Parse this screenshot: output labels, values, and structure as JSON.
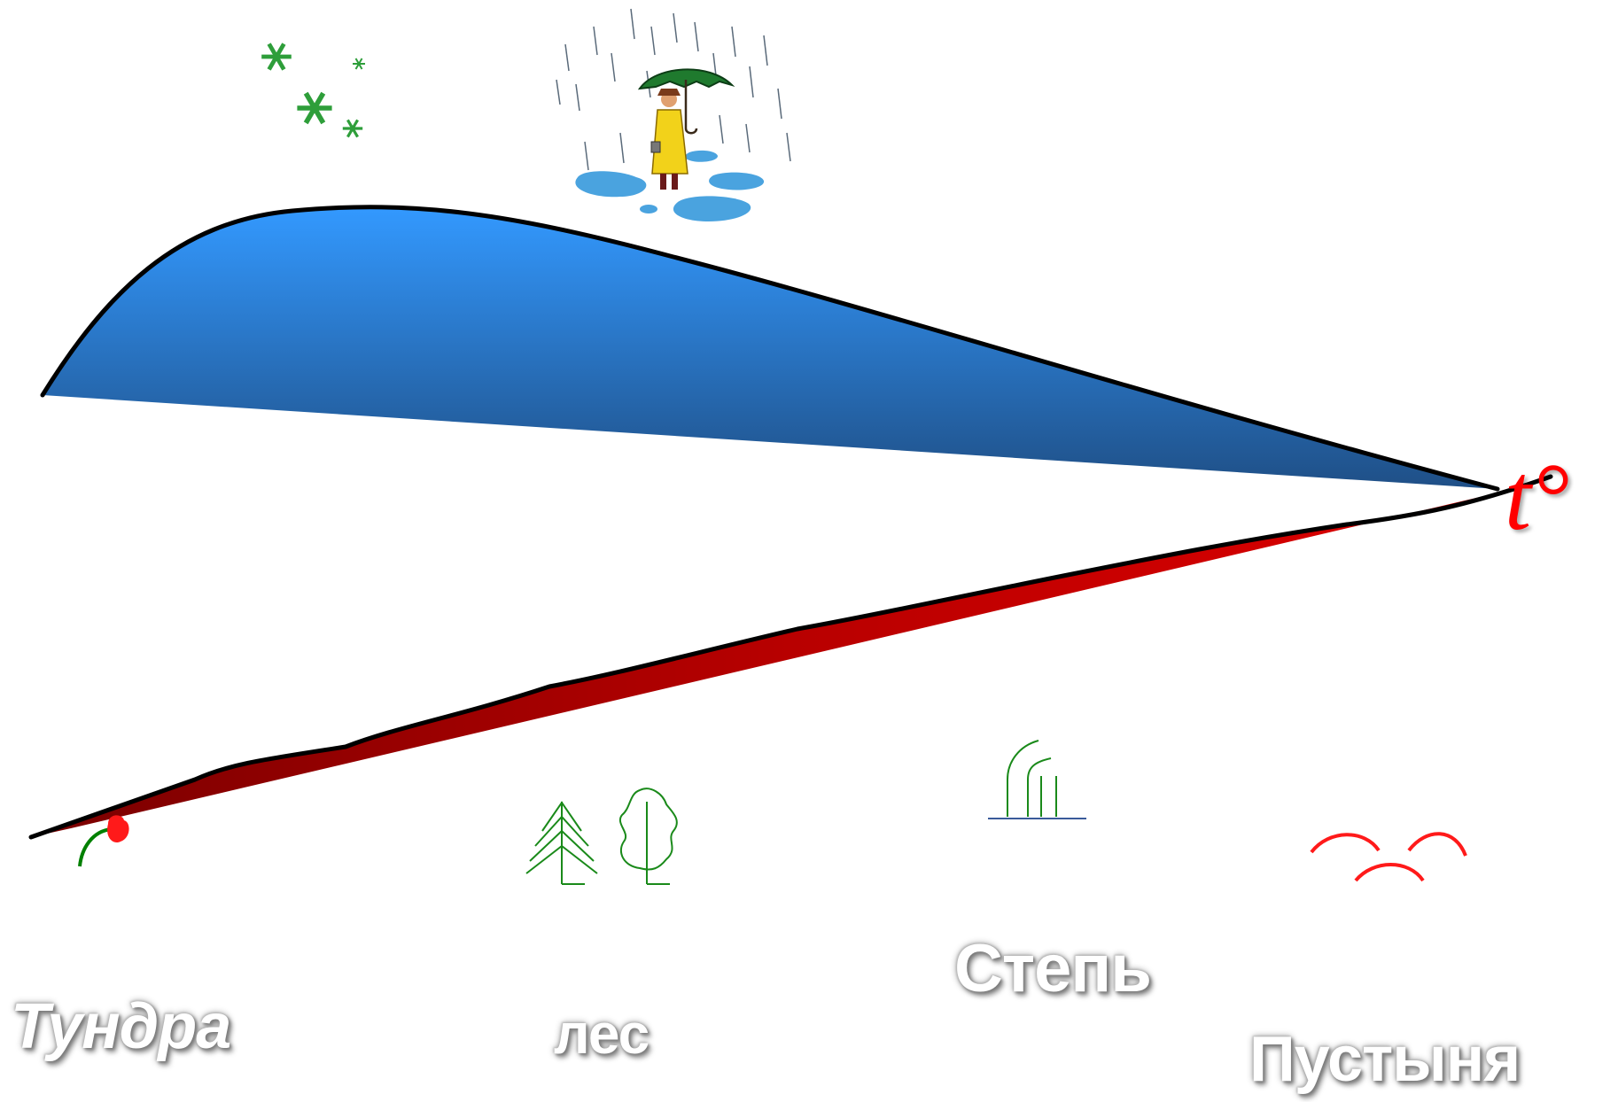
{
  "diagram": {
    "axis_label": "t°",
    "zones": [
      {
        "id": "tundra",
        "label": "Тундра"
      },
      {
        "id": "forest",
        "label": "лес"
      },
      {
        "id": "steppe",
        "label": "Степь"
      },
      {
        "id": "desert",
        "label": "Пустыня"
      }
    ],
    "colors": {
      "precipitation_top": "#3399ff",
      "precipitation_bottom": "#1f4f86",
      "temperature_fill": "#cc0000",
      "temperature_axis_label": "#ff0000",
      "plant_green": "#008000",
      "outline": "#000000"
    },
    "icons": [
      "snowflake-icon",
      "rain-umbrella-person-icon",
      "tundra-flower-icon",
      "spruce-tree-icon",
      "deciduous-tree-icon",
      "steppe-grass-icon",
      "desert-dune-icon"
    ]
  }
}
